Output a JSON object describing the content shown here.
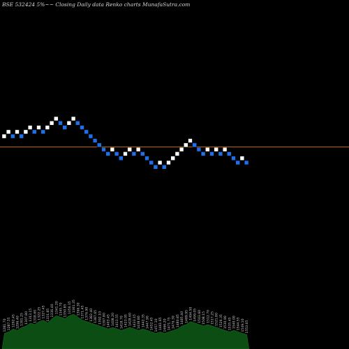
{
  "header": {
    "title": "BSE 532424  5%~~  Closing Daily data  Renko  charts MunafaSutra.com"
  },
  "chart_data": {
    "type": "renko",
    "title": "BSE 532424  5%~~  Closing Daily data  Renko  charts MunafaSutra.com",
    "colors": {
      "background": "#000000",
      "up": "#ffffff",
      "down": "#1e6fe8",
      "reference_line": "#b8650a",
      "volume": "#0b4d12",
      "volume_labels": "#c8c8c8"
    },
    "bricks": [
      {
        "dir": "up",
        "level": 3
      },
      {
        "dir": "up",
        "level": 4
      },
      {
        "dir": "down",
        "level": 3
      },
      {
        "dir": "up",
        "level": 4
      },
      {
        "dir": "down",
        "level": 3
      },
      {
        "dir": "up",
        "level": 4
      },
      {
        "dir": "up",
        "level": 5
      },
      {
        "dir": "down",
        "level": 4
      },
      {
        "dir": "up",
        "level": 5
      },
      {
        "dir": "down",
        "level": 4
      },
      {
        "dir": "up",
        "level": 5
      },
      {
        "dir": "up",
        "level": 6
      },
      {
        "dir": "up",
        "level": 7
      },
      {
        "dir": "down",
        "level": 6
      },
      {
        "dir": "down",
        "level": 5
      },
      {
        "dir": "up",
        "level": 6
      },
      {
        "dir": "up",
        "level": 7
      },
      {
        "dir": "down",
        "level": 6
      },
      {
        "dir": "down",
        "level": 5
      },
      {
        "dir": "down",
        "level": 4
      },
      {
        "dir": "down",
        "level": 3
      },
      {
        "dir": "down",
        "level": 2
      },
      {
        "dir": "down",
        "level": 1
      },
      {
        "dir": "down",
        "level": 0
      },
      {
        "dir": "down",
        "level": -1
      },
      {
        "dir": "up",
        "level": 0
      },
      {
        "dir": "down",
        "level": -1
      },
      {
        "dir": "down",
        "level": -2
      },
      {
        "dir": "up",
        "level": -1
      },
      {
        "dir": "up",
        "level": 0
      },
      {
        "dir": "down",
        "level": -1
      },
      {
        "dir": "up",
        "level": 0
      },
      {
        "dir": "down",
        "level": -1
      },
      {
        "dir": "down",
        "level": -2
      },
      {
        "dir": "down",
        "level": -3
      },
      {
        "dir": "down",
        "level": -4
      },
      {
        "dir": "up",
        "level": -3
      },
      {
        "dir": "down",
        "level": -4
      },
      {
        "dir": "up",
        "level": -3
      },
      {
        "dir": "up",
        "level": -2
      },
      {
        "dir": "up",
        "level": -1
      },
      {
        "dir": "up",
        "level": 0
      },
      {
        "dir": "up",
        "level": 1
      },
      {
        "dir": "up",
        "level": 2
      },
      {
        "dir": "down",
        "level": 1
      },
      {
        "dir": "down",
        "level": 0
      },
      {
        "dir": "down",
        "level": -1
      },
      {
        "dir": "up",
        "level": 0
      },
      {
        "dir": "down",
        "level": -1
      },
      {
        "dir": "up",
        "level": 0
      },
      {
        "dir": "down",
        "level": -1
      },
      {
        "dir": "up",
        "level": 0
      },
      {
        "dir": "down",
        "level": -1
      },
      {
        "dir": "down",
        "level": -2
      },
      {
        "dir": "down",
        "level": -3
      },
      {
        "dir": "up",
        "level": -2
      },
      {
        "dir": "down",
        "level": -3
      }
    ],
    "volume": [
      5,
      6,
      8,
      7,
      9,
      10,
      12,
      11,
      13,
      14,
      12,
      15,
      17,
      16,
      15,
      17,
      18,
      16,
      14,
      13,
      12,
      11,
      10,
      9,
      8,
      9,
      8,
      7,
      8,
      9,
      8,
      7,
      8,
      7,
      6,
      5,
      6,
      5,
      6,
      7,
      8,
      10,
      11,
      13,
      12,
      11,
      10,
      11,
      10,
      9,
      8,
      7,
      6,
      7,
      6,
      5,
      4
    ],
    "volume_labels": [
      "1281.70",
      "1287.55",
      "1292.45",
      "1296.40",
      "1301.25",
      "1307.80",
      "1313.15",
      "1318.60",
      "1322.25",
      "1327.45",
      "1331.85",
      "1336.40",
      "1341.20",
      "1345.70",
      "1350.85",
      "1356.15",
      "1361.35",
      "1366.30",
      "1371.45",
      "1376.90",
      "1382.40",
      "1387.65",
      "1392.10",
      "1397.80",
      "1403.45",
      "1408.20",
      "1413.55",
      "1418.70",
      "1423.05",
      "1428.60",
      "1433.15",
      "1438.80",
      "1442.35",
      "1447.90",
      "1452.45",
      "1457.10",
      "1461.65",
      "1466.20",
      "1471.75",
      "1476.30",
      "1480.85",
      "1485.40",
      "1489.95",
      "1494.50",
      "1499.05",
      "1503.60",
      "1508.15",
      "1512.70",
      "1517.25",
      "1521.80",
      "1526.35",
      "1530.90",
      "1535.45",
      "1540.00",
      "1544.55",
      "1549.10",
      "1553.65"
    ],
    "reference_line": "horizontal line at the baseline brick level"
  }
}
